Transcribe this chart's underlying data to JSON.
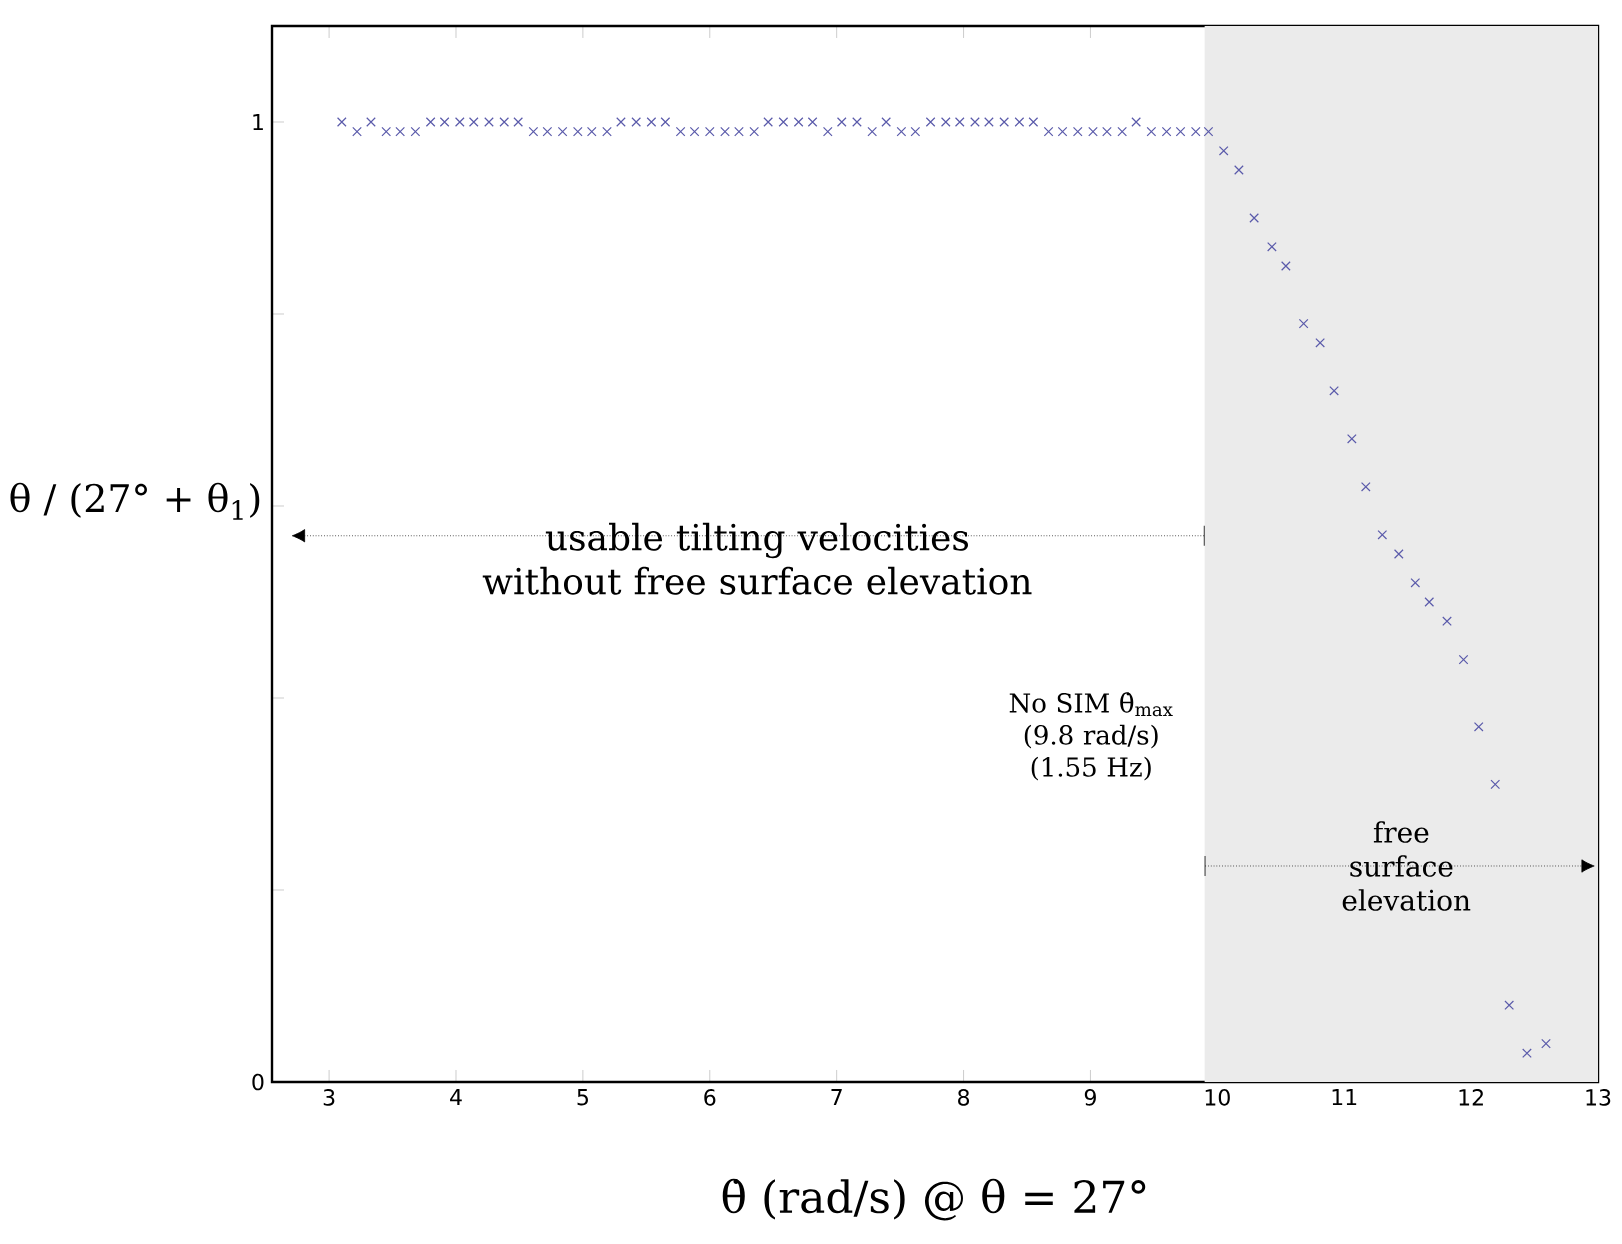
{
  "chart_data": {
    "type": "scatter",
    "xlabel": "θ̇ (rad/s) @ θ = 27°",
    "ylabel": "θ / (27° + θ$_{1}$)",
    "xlim": [
      2.55,
      13
    ],
    "ylim": [
      0,
      1.1
    ],
    "xticks": [
      3,
      4,
      5,
      6,
      7,
      8,
      9,
      10,
      11,
      12,
      13
    ],
    "yticks": [
      0,
      {
        "value": 0.2,
        "label": null
      },
      {
        "value": 0.4,
        "label": null
      },
      {
        "value": 0.6,
        "label": null
      },
      {
        "value": 0.8,
        "label": null
      },
      1
    ],
    "grid": false,
    "marker": "cross",
    "series": [
      {
        "color": "#5a5aaa",
        "x": [
          3.1,
          3.22,
          3.33,
          3.45,
          3.56,
          3.68,
          3.8,
          3.91,
          4.03,
          4.14,
          4.26,
          4.38,
          4.49,
          4.61,
          4.72,
          4.84,
          4.96,
          5.07,
          5.19,
          5.3,
          5.42,
          5.54,
          5.65,
          5.77,
          5.88,
          6.0,
          6.12,
          6.23,
          6.35,
          6.46,
          6.58,
          6.7,
          6.81,
          6.93,
          7.04,
          7.16,
          7.28,
          7.39,
          7.51,
          7.62,
          7.74,
          7.86,
          7.97,
          8.09,
          8.2,
          8.32,
          8.44,
          8.55,
          8.67,
          8.78,
          8.9,
          9.02,
          9.13,
          9.25,
          9.36,
          9.48,
          9.6,
          9.71,
          9.83,
          9.93,
          10.05,
          10.17,
          10.29,
          10.43,
          10.54,
          10.68,
          10.81,
          10.92,
          11.06,
          11.17,
          11.3,
          11.43,
          11.56,
          11.67,
          11.81,
          11.94,
          12.06,
          12.19,
          12.3,
          12.44,
          12.59
        ],
        "values": [
          1.0,
          0.99,
          1.0,
          0.99,
          0.99,
          0.99,
          1.0,
          1.0,
          1.0,
          1.0,
          1.0,
          1.0,
          1.0,
          0.99,
          0.99,
          0.99,
          0.99,
          0.99,
          0.99,
          1.0,
          1.0,
          1.0,
          1.0,
          0.99,
          0.99,
          0.99,
          0.99,
          0.99,
          0.99,
          1.0,
          1.0,
          1.0,
          1.0,
          0.99,
          1.0,
          1.0,
          0.99,
          1.0,
          0.99,
          0.99,
          1.0,
          1.0,
          1.0,
          1.0,
          1.0,
          1.0,
          1.0,
          1.0,
          0.99,
          0.99,
          0.99,
          0.99,
          0.99,
          0.99,
          1.0,
          0.99,
          0.99,
          0.99,
          0.99,
          0.99,
          0.97,
          0.95,
          0.9,
          0.87,
          0.85,
          0.79,
          0.77,
          0.72,
          0.67,
          0.62,
          0.57,
          0.55,
          0.52,
          0.5,
          0.48,
          0.44,
          0.37,
          0.31,
          0.08,
          0.03,
          0.04
        ]
      }
    ],
    "bands": [
      {
        "axis": "x",
        "from": 9.9,
        "to": 13,
        "color": "#ebebeb"
      }
    ],
    "annotations": [
      "usable tilting velocities without free surface elevation",
      "No SIM θ̇$_{max}$ (9.8 rad/s) (1.55 Hz)",
      "free surface elevation"
    ]
  }
}
